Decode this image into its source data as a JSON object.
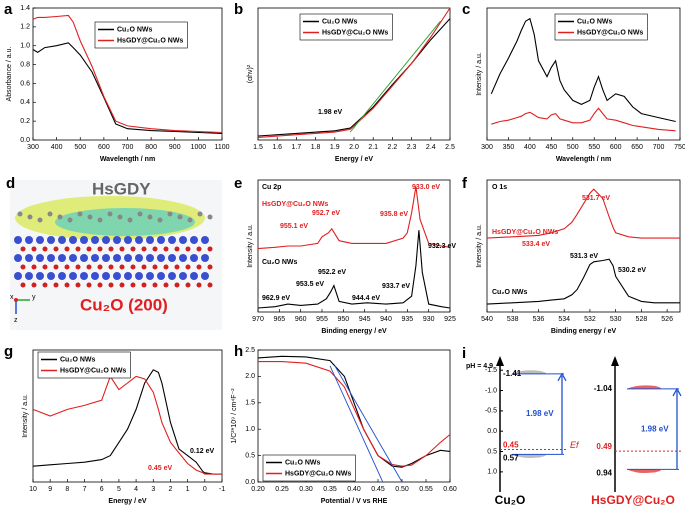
{
  "chart_data": [
    {
      "type": "line",
      "label": "a",
      "xlabel": "Wavelength / nm",
      "ylabel": "Absorbance / a.u.",
      "xlim": [
        300,
        1100
      ],
      "xticks": [
        300,
        400,
        500,
        600,
        700,
        800,
        900,
        1000,
        1100
      ],
      "ylim": [
        0,
        1.4
      ],
      "yticks": [
        {
          "value": 0,
          "label": "0.0"
        },
        0.2,
        0.4,
        0.6,
        0.8,
        {
          "value": 1,
          "label": "1.0"
        },
        1.2,
        1.4
      ],
      "legend": "upper right",
      "series": [
        {
          "name": "Cu₂O NWs",
          "color": "#000000",
          "x": [
            300,
            320,
            350,
            400,
            450,
            470,
            500,
            550,
            600,
            650,
            700,
            800,
            900,
            1000,
            1100
          ],
          "values": [
            0.96,
            0.93,
            0.98,
            1.0,
            1.03,
            0.98,
            0.9,
            0.72,
            0.45,
            0.17,
            0.12,
            0.1,
            0.09,
            0.08,
            0.07
          ]
        },
        {
          "name": "HsGDY@Cu₂O NWs",
          "color": "#e02020",
          "x": [
            300,
            320,
            350,
            400,
            450,
            470,
            500,
            550,
            600,
            650,
            700,
            800,
            900,
            1000,
            1100
          ],
          "values": [
            1.28,
            1.3,
            1.3,
            1.31,
            1.32,
            1.25,
            1.05,
            0.78,
            0.46,
            0.2,
            0.15,
            0.12,
            0.1,
            0.09,
            0.08
          ]
        }
      ]
    },
    {
      "type": "line",
      "label": "b",
      "xlabel": "Energy / eV",
      "ylabel": "(αhν)²",
      "xlim": [
        1.5,
        2.5
      ],
      "xticks": [
        1.5,
        1.6,
        1.7,
        1.8,
        1.9,
        {
          "value": 2,
          "label": "2.0"
        },
        2.1,
        2.2,
        2.3,
        2.4,
        2.5
      ],
      "ylim": [
        0,
        1
      ],
      "legend": "upper left",
      "annotations": [
        {
          "text": "1.98 eV",
          "color": "#000000"
        }
      ],
      "series": [
        {
          "name": "Cu₂O NWs",
          "color": "#000000",
          "x": [
            1.5,
            1.7,
            1.9,
            1.98,
            2.1,
            2.2,
            2.3,
            2.4,
            2.5
          ],
          "values": [
            0.03,
            0.05,
            0.07,
            0.09,
            0.25,
            0.42,
            0.58,
            0.76,
            0.92
          ]
        },
        {
          "name": "HsGDY@Cu₂O NWs",
          "color": "#e02020",
          "x": [
            1.5,
            1.7,
            1.9,
            1.98,
            2.1,
            2.2,
            2.3,
            2.4,
            2.5
          ],
          "values": [
            0.02,
            0.04,
            0.06,
            0.08,
            0.24,
            0.41,
            0.58,
            0.78,
            1.0
          ]
        },
        {
          "color": "#2ca02c",
          "x": [
            1.98,
            2.45
          ],
          "values": [
            0.06,
            0.9
          ]
        }
      ]
    },
    {
      "type": "line",
      "label": "c",
      "xlabel": "Wavelength / nm",
      "ylabel": "Intensity / a.u.",
      "xlim": [
        300,
        750
      ],
      "xticks": [
        300,
        350,
        400,
        450,
        500,
        550,
        600,
        650,
        700,
        750
      ],
      "ylim": [
        0,
        1
      ],
      "legend": "upper right",
      "series": [
        {
          "name": "Cu₂O NWs",
          "color": "#000000",
          "x": [
            310,
            330,
            350,
            370,
            380,
            390,
            400,
            410,
            420,
            440,
            450,
            460,
            470,
            480,
            500,
            520,
            540,
            550,
            560,
            570,
            580,
            600,
            620,
            640,
            660,
            700,
            740
          ],
          "values": [
            0.35,
            0.5,
            0.62,
            0.75,
            0.83,
            0.9,
            0.92,
            0.8,
            0.6,
            0.48,
            0.55,
            0.6,
            0.45,
            0.38,
            0.3,
            0.27,
            0.3,
            0.4,
            0.48,
            0.38,
            0.3,
            0.35,
            0.33,
            0.25,
            0.2,
            0.17,
            0.14
          ]
        },
        {
          "name": "HsGDY@Cu₂O NWs",
          "color": "#e02020",
          "x": [
            310,
            330,
            350,
            370,
            380,
            390,
            400,
            410,
            420,
            440,
            450,
            460,
            470,
            480,
            500,
            520,
            540,
            550,
            560,
            570,
            580,
            600,
            620,
            640,
            660,
            700,
            740
          ],
          "values": [
            0.12,
            0.14,
            0.15,
            0.17,
            0.18,
            0.2,
            0.21,
            0.19,
            0.17,
            0.16,
            0.19,
            0.2,
            0.16,
            0.15,
            0.13,
            0.13,
            0.15,
            0.2,
            0.24,
            0.2,
            0.16,
            0.15,
            0.13,
            0.11,
            0.1,
            0.08,
            0.07
          ]
        }
      ]
    },
    {
      "type": "line",
      "label": "e",
      "subtitle": "Cu 2p",
      "xlabel": "Binding energy / eV",
      "ylabel": "Intensity / a.u.",
      "xlim": [
        970,
        925
      ],
      "xticks": [
        970,
        965,
        960,
        955,
        950,
        945,
        940,
        935,
        930,
        925
      ],
      "ylim": [
        0,
        1
      ],
      "legend": "inline",
      "annotations": [
        {
          "text": "933.0 eV",
          "color": "#e02020"
        },
        {
          "text": "955.1 eV",
          "color": "#e02020"
        },
        {
          "text": "952.7 eV",
          "color": "#e02020"
        },
        {
          "text": "935.8 eV",
          "color": "#e02020"
        },
        {
          "text": "932.3 eV",
          "color": "#000000"
        },
        {
          "text": "952.2 eV",
          "color": "#000000"
        },
        {
          "text": "953.5 eV",
          "color": "#000000"
        },
        {
          "text": "962.9 eV",
          "color": "#000000"
        },
        {
          "text": "944.4 eV",
          "color": "#000000"
        },
        {
          "text": "933.7 eV",
          "color": "#000000"
        }
      ],
      "series": [
        {
          "name": "Cu₂O NWs",
          "color": "#000000",
          "x": [
            970,
            966,
            963,
            960,
            956,
            954,
            953,
            952.2,
            951,
            948,
            944.4,
            940,
            936,
            934,
            933,
            932.3,
            931.5,
            930,
            927,
            925
          ],
          "values": [
            0.03,
            0.04,
            0.06,
            0.05,
            0.06,
            0.1,
            0.15,
            0.2,
            0.08,
            0.06,
            0.07,
            0.06,
            0.07,
            0.12,
            0.35,
            0.62,
            0.3,
            0.06,
            0.04,
            0.03
          ]
        },
        {
          "name": "HsGDY@Cu₂O NWs",
          "color": "#e02020",
          "x": [
            970,
            966,
            963,
            960,
            956,
            955,
            953.5,
            952.7,
            951,
            948,
            944.4,
            940,
            936,
            935,
            934,
            933,
            932,
            930,
            927,
            925
          ],
          "values": [
            0.48,
            0.49,
            0.5,
            0.5,
            0.52,
            0.57,
            0.6,
            0.63,
            0.54,
            0.52,
            0.52,
            0.52,
            0.56,
            0.6,
            0.75,
            0.95,
            0.7,
            0.52,
            0.5,
            0.49
          ]
        }
      ]
    },
    {
      "type": "line",
      "label": "f",
      "subtitle": "O 1s",
      "xlabel": "Binding energy / eV",
      "ylabel": "Intensity / a.u.",
      "xlim": [
        540,
        525
      ],
      "xticks": [
        540,
        538,
        536,
        534,
        532,
        530,
        528,
        526
      ],
      "ylim": [
        0,
        1
      ],
      "legend": "inline",
      "annotations": [
        {
          "text": "531.7 eV",
          "color": "#e02020"
        },
        {
          "text": "533.4 eV",
          "color": "#e02020"
        },
        {
          "text": "531.3 eV",
          "color": "#000000"
        },
        {
          "text": "530.2 eV",
          "color": "#000000"
        }
      ],
      "series": [
        {
          "name": "Cu₂O NWs",
          "color": "#000000",
          "x": [
            540,
            538,
            536,
            535,
            534,
            533.4,
            533,
            532.5,
            532,
            531.7,
            531,
            530.5,
            530.2,
            530,
            529,
            528,
            527,
            526,
            525
          ],
          "values": [
            0.06,
            0.07,
            0.08,
            0.09,
            0.1,
            0.13,
            0.17,
            0.26,
            0.36,
            0.38,
            0.39,
            0.4,
            0.35,
            0.27,
            0.12,
            0.08,
            0.07,
            0.07,
            0.07
          ]
        },
        {
          "name": "HsGDY@Cu₂O NWs",
          "color": "#e02020",
          "x": [
            540,
            538,
            536,
            535,
            534,
            533.4,
            533,
            532.5,
            532,
            531.7,
            531,
            530.5,
            530.2,
            530,
            529,
            528,
            527,
            526,
            525
          ],
          "values": [
            0.56,
            0.57,
            0.58,
            0.6,
            0.63,
            0.68,
            0.74,
            0.82,
            0.9,
            0.93,
            0.86,
            0.72,
            0.64,
            0.6,
            0.57,
            0.56,
            0.56,
            0.56,
            0.56
          ]
        }
      ]
    },
    {
      "type": "line",
      "label": "g",
      "xlabel": "Energy / eV",
      "ylabel": "Intensity / a.u.",
      "xlim": [
        10,
        -1
      ],
      "xticks": [
        10,
        9,
        8,
        7,
        6,
        5,
        4,
        3,
        2,
        1,
        0,
        -1
      ],
      "ylim": [
        0,
        1
      ],
      "legend": "upper left",
      "annotations": [
        {
          "text": "0.12 eV",
          "color": "#000000"
        },
        {
          "text": "0.45 eV",
          "color": "#e02020"
        }
      ],
      "series": [
        {
          "name": "Cu₂O NWs",
          "color": "#000000",
          "x": [
            10,
            9,
            8,
            7,
            6,
            5.5,
            5,
            4.5,
            4,
            3.5,
            3,
            2.7,
            2.5,
            2,
            1.5,
            1,
            0.5,
            0.12,
            0,
            -0.5,
            -1
          ],
          "values": [
            0.12,
            0.13,
            0.14,
            0.15,
            0.17,
            0.2,
            0.3,
            0.4,
            0.55,
            0.75,
            0.85,
            0.83,
            0.75,
            0.45,
            0.25,
            0.2,
            0.15,
            0.08,
            0.07,
            0.06,
            0.06
          ]
        },
        {
          "name": "HsGDY@Cu₂O NWs",
          "color": "#e02020",
          "x": [
            10,
            9,
            8,
            7,
            6,
            5.5,
            5,
            4.5,
            4,
            3.5,
            3,
            2.7,
            2.5,
            2,
            1.5,
            1,
            0.5,
            0.12,
            0,
            -0.5,
            -1
          ],
          "values": [
            0.55,
            0.5,
            0.55,
            0.58,
            0.62,
            0.8,
            0.7,
            0.75,
            0.8,
            0.78,
            0.68,
            0.55,
            0.45,
            0.3,
            0.22,
            0.14,
            0.09,
            0.07,
            0.06,
            0.06,
            0.06
          ]
        }
      ]
    },
    {
      "type": "line",
      "label": "h",
      "xlabel": "Potential / V vs RHE",
      "ylabel": "1/C²*10⁹ / cm⁴F⁻²",
      "xlim": [
        0.2,
        0.6
      ],
      "xticks": [
        {
          "value": 0.2,
          "label": "0.20"
        },
        0.25,
        {
          "value": 0.3,
          "label": "0.30"
        },
        0.35,
        {
          "value": 0.4,
          "label": "0.40"
        },
        0.45,
        {
          "value": 0.5,
          "label": "0.50"
        },
        0.55,
        {
          "value": 0.6,
          "label": "0.60"
        }
      ],
      "ylim": [
        0,
        2.5
      ],
      "yticks": [
        {
          "value": 0,
          "label": "0.0"
        },
        0.5,
        {
          "value": 1,
          "label": "1.0"
        },
        1.5,
        {
          "value": 2,
          "label": "2.0"
        },
        2.5
      ],
      "legend": "lower left",
      "series": [
        {
          "name": "Cu₂O NWs",
          "color": "#000000",
          "x": [
            0.2,
            0.25,
            0.3,
            0.35,
            0.38,
            0.4,
            0.42,
            0.45,
            0.48,
            0.5,
            0.52,
            0.55,
            0.58,
            0.6
          ],
          "values": [
            2.35,
            2.38,
            2.37,
            2.3,
            2.0,
            1.5,
            1.0,
            0.5,
            0.3,
            0.28,
            0.35,
            0.5,
            0.6,
            0.58
          ]
        },
        {
          "name": "HsGDY@Cu₂O NWs",
          "color": "#e02020",
          "x": [
            0.2,
            0.25,
            0.3,
            0.35,
            0.38,
            0.4,
            0.42,
            0.45,
            0.48,
            0.5,
            0.52,
            0.55,
            0.58,
            0.6
          ],
          "values": [
            2.28,
            2.28,
            2.25,
            2.1,
            1.8,
            1.4,
            1.0,
            0.5,
            0.33,
            0.3,
            0.32,
            0.5,
            0.75,
            0.9
          ]
        },
        {
          "color": "#2050d0",
          "x": [
            0.36,
            0.5
          ],
          "values": [
            2.2,
            0
          ]
        },
        {
          "color": "#2050d0",
          "x": [
            0.35,
            0.46
          ],
          "values": [
            2.2,
            0
          ]
        }
      ]
    },
    {
      "type": "band",
      "label": "i",
      "ylabel": "pH = 4.9",
      "ylim": [
        1.2,
        -1.8
      ],
      "yticks": [
        -1.5,
        {
          "value": -1,
          "label": "-1.0"
        },
        -0.5,
        {
          "value": 0,
          "label": "0.0"
        },
        0.5,
        {
          "value": 1,
          "label": "1.0"
        }
      ],
      "categories": [
        "Cu₂O",
        "HsGDY@Cu₂O"
      ],
      "colors": [
        "#a0a0a0",
        "#e02020"
      ],
      "cb": [
        -1.41,
        -1.04
      ],
      "vb": [
        0.57,
        0.94
      ],
      "ef": [
        0.45,
        0.49
      ],
      "ef_label": "Ef",
      "gap": [
        1.98,
        1.98
      ],
      "gap_labels": [
        "1.98 eV",
        "1.98 eV"
      ]
    }
  ],
  "structure": {
    "label": "d",
    "top_label": "HsGDY",
    "bottom_label": "Cu₂O (200)",
    "axes": [
      "x",
      "y",
      "z"
    ]
  }
}
